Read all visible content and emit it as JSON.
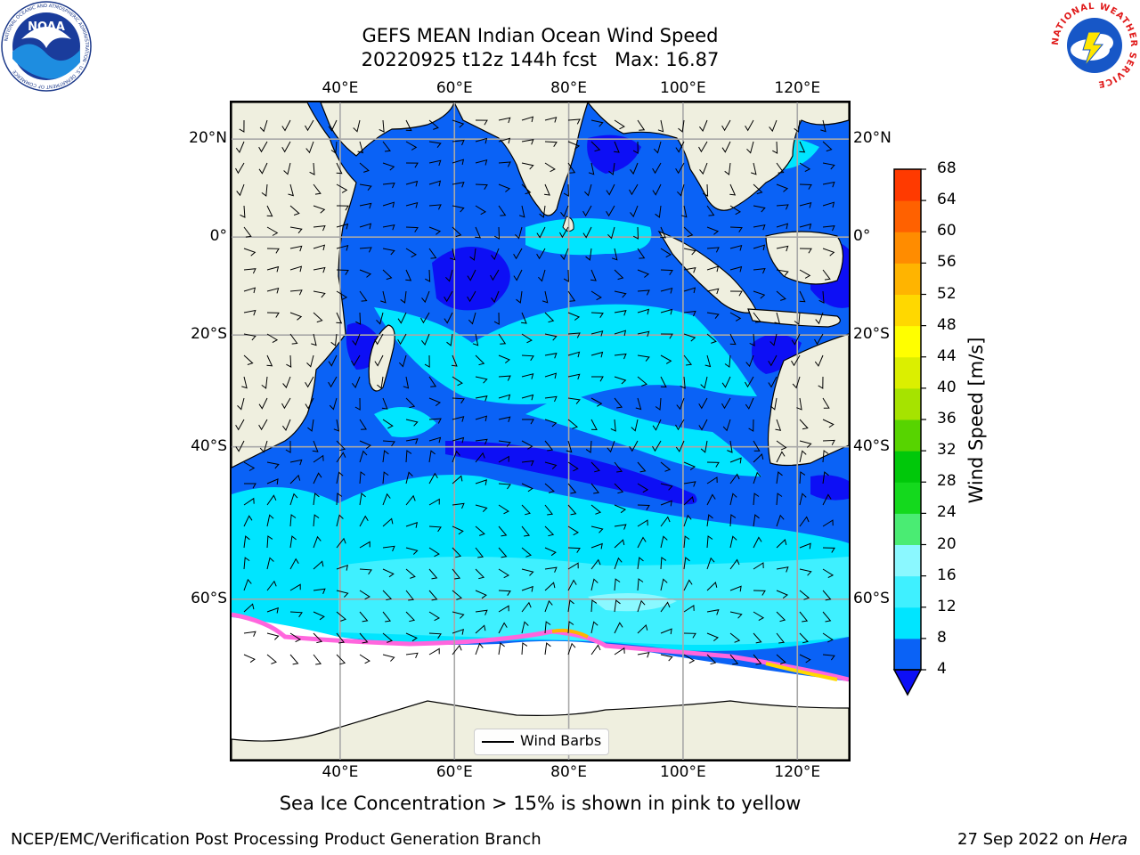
{
  "title": {
    "line1": "GEFS MEAN Indian Ocean Wind Speed",
    "line2": "20220925 t12z 144h fcst   Max: 16.87"
  },
  "logos": {
    "noaa": {
      "text": "NOAA",
      "ring_text": "NATIONAL OCEANIC AND ATMOSPHERIC ADMINISTRATION · U.S. DEPARTMENT OF COMMERCE"
    },
    "nws": {
      "ring_text": "NATIONAL WEATHER SERVICE"
    }
  },
  "map": {
    "lon_range": [
      21,
      129
    ],
    "lat_range": [
      -73,
      27
    ],
    "lon_ticks": [
      "40°E",
      "60°E",
      "80°E",
      "100°E",
      "120°E"
    ],
    "lon_values": [
      40,
      60,
      80,
      100,
      120
    ],
    "lat_ticks_left": [
      "20°N",
      "0°",
      "20°S",
      "40°S",
      "60°S"
    ],
    "lat_ticks_right": [
      "20°N",
      "0°",
      "20°S",
      "40°S",
      "60°S"
    ],
    "lat_values": [
      20,
      0,
      -20,
      -40,
      -60
    ],
    "gridlines": true,
    "legend_label": "Wind Barbs",
    "colors": {
      "land": "#efefdf",
      "ocean_min": "#0068f5",
      "ice": "#ff66dd"
    }
  },
  "colorbar": {
    "title": "Wind Speed [m/s]",
    "ticks": [
      "4",
      "8",
      "12",
      "16",
      "20",
      "24",
      "28",
      "32",
      "36",
      "40",
      "44",
      "48",
      "52",
      "56",
      "60",
      "64",
      "68"
    ],
    "colors": [
      "#0a62f6",
      "#00e5ff",
      "#3ff0ff",
      "#8bf8ff",
      "#4aec73",
      "#14d91d",
      "#00c80a",
      "#57d400",
      "#a6e300",
      "#dbef00",
      "#ffff00",
      "#ffd800",
      "#ffb400",
      "#ff8c00",
      "#ff6100",
      "#ff3a00"
    ],
    "extend_color": "#0d0ff5"
  },
  "note": "Sea Ice Concentration > 15% is shown in pink to yellow",
  "footer": {
    "left": "NCEP/EMC/Verification Post Processing Product Generation Branch",
    "right_prefix": "27 Sep 2022 on ",
    "right_host": "Hera"
  }
}
